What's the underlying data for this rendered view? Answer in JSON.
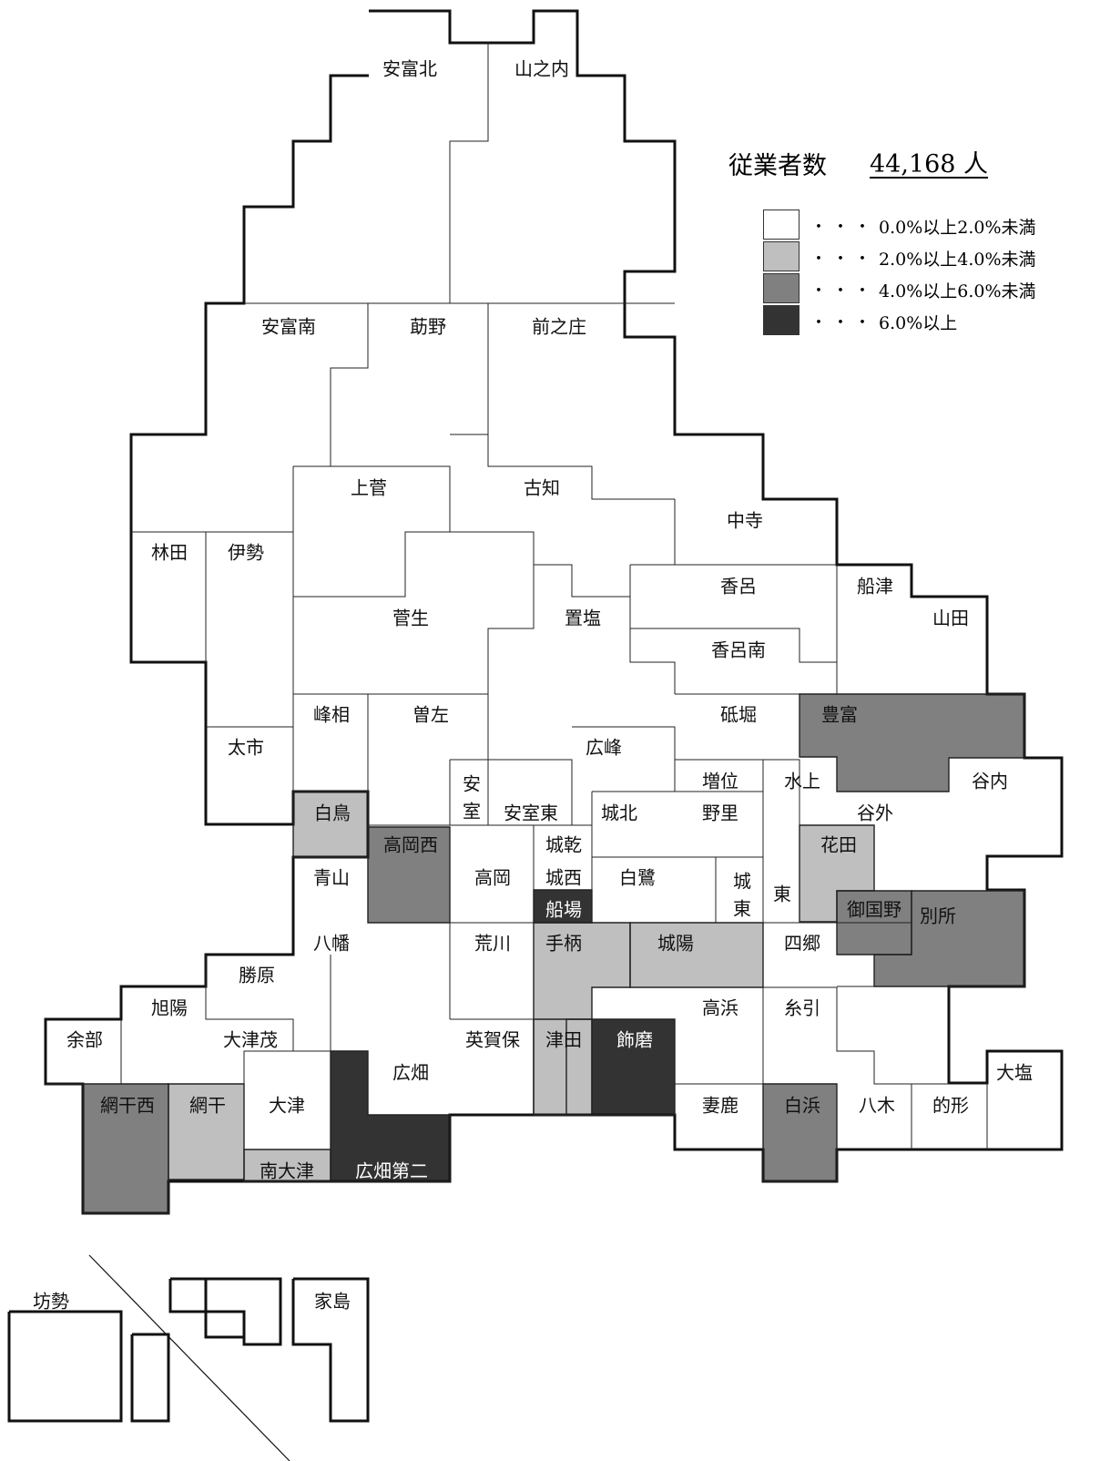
{
  "legend": {
    "title": "従業者数",
    "total": "44,168 人",
    "classes": [
      {
        "label": "0.0%以上2.0%未満",
        "dots": "・・・",
        "color": "#ffffff"
      },
      {
        "label": "2.0%以上4.0%未満",
        "dots": "・・・",
        "color": "#bfbfbf"
      },
      {
        "label": "4.0%以上6.0%未満",
        "dots": "・・・",
        "color": "#808080"
      },
      {
        "label": "6.0%以上",
        "dots": "・・・",
        "color": "#333333"
      }
    ]
  },
  "districts": [
    {
      "name": "安富北",
      "class": 0
    },
    {
      "name": "山之内",
      "class": 0
    },
    {
      "name": "安富南",
      "class": 0
    },
    {
      "name": "莇野",
      "class": 0
    },
    {
      "name": "前之庄",
      "class": 0
    },
    {
      "name": "上菅",
      "class": 0
    },
    {
      "name": "古知",
      "class": 0
    },
    {
      "name": "中寺",
      "class": 0
    },
    {
      "name": "林田",
      "class": 0
    },
    {
      "name": "伊勢",
      "class": 0
    },
    {
      "name": "菅生",
      "class": 0
    },
    {
      "name": "置塩",
      "class": 0
    },
    {
      "name": "香呂",
      "class": 0
    },
    {
      "name": "船津",
      "class": 0
    },
    {
      "name": "山田",
      "class": 0
    },
    {
      "name": "香呂南",
      "class": 0
    },
    {
      "name": "峰相",
      "class": 0
    },
    {
      "name": "曽左",
      "class": 0
    },
    {
      "name": "砥堀",
      "class": 0
    },
    {
      "name": "豊富",
      "class": 2
    },
    {
      "name": "太市",
      "class": 0
    },
    {
      "name": "広峰",
      "class": 0
    },
    {
      "name": "安室",
      "class": 0
    },
    {
      "name": "増位",
      "class": 0
    },
    {
      "name": "水上",
      "class": 0
    },
    {
      "name": "谷内",
      "class": 0
    },
    {
      "name": "白鳥",
      "class": 1
    },
    {
      "name": "安室東",
      "class": 0
    },
    {
      "name": "城北",
      "class": 0
    },
    {
      "name": "野里",
      "class": 0
    },
    {
      "name": "谷外",
      "class": 0
    },
    {
      "name": "高岡西",
      "class": 2
    },
    {
      "name": "城乾",
      "class": 0
    },
    {
      "name": "花田",
      "class": 1
    },
    {
      "name": "青山",
      "class": 0
    },
    {
      "name": "高岡",
      "class": 0
    },
    {
      "name": "城西",
      "class": 0
    },
    {
      "name": "白鷺",
      "class": 0
    },
    {
      "name": "城東",
      "class": 0
    },
    {
      "name": "東",
      "class": 0
    },
    {
      "name": "船場",
      "class": 3
    },
    {
      "name": "御国野",
      "class": 2
    },
    {
      "name": "別所",
      "class": 2
    },
    {
      "name": "八幡",
      "class": 0
    },
    {
      "name": "荒川",
      "class": 0
    },
    {
      "name": "手柄",
      "class": 1
    },
    {
      "name": "城陽",
      "class": 1
    },
    {
      "name": "四郷",
      "class": 0
    },
    {
      "name": "勝原",
      "class": 0
    },
    {
      "name": "旭陽",
      "class": 0
    },
    {
      "name": "高浜",
      "class": 0
    },
    {
      "name": "糸引",
      "class": 0
    },
    {
      "name": "余部",
      "class": 0
    },
    {
      "name": "大津茂",
      "class": 0
    },
    {
      "name": "英賀保",
      "class": 0
    },
    {
      "name": "津田",
      "class": 1
    },
    {
      "name": "飾磨",
      "class": 3
    },
    {
      "name": "広畑",
      "class": 0
    },
    {
      "name": "大塩",
      "class": 0
    },
    {
      "name": "網干西",
      "class": 2
    },
    {
      "name": "網干",
      "class": 1
    },
    {
      "name": "大津",
      "class": 0
    },
    {
      "name": "妻鹿",
      "class": 0
    },
    {
      "name": "白浜",
      "class": 2
    },
    {
      "name": "八木",
      "class": 0
    },
    {
      "name": "的形",
      "class": 0
    },
    {
      "name": "南大津",
      "class": 1
    },
    {
      "name": "広畑第二",
      "class": 3
    },
    {
      "name": "坊勢",
      "class": 0
    },
    {
      "name": "家島",
      "class": 0
    }
  ]
}
